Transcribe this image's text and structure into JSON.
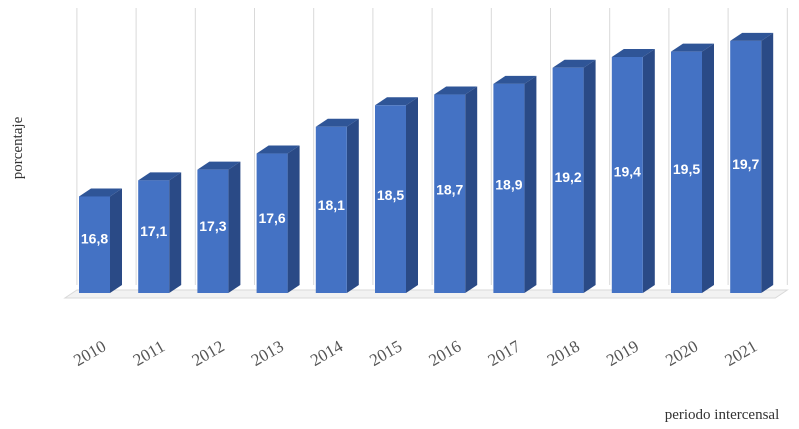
{
  "chart_data": {
    "type": "bar",
    "style": "3d-column",
    "categories": [
      "2010",
      "2011",
      "2012",
      "2013",
      "2014",
      "2015",
      "2016",
      "2017",
      "2018",
      "2019",
      "2020",
      "2021"
    ],
    "values": [
      16.8,
      17.1,
      17.3,
      17.6,
      18.1,
      18.5,
      18.7,
      18.9,
      19.2,
      19.4,
      19.5,
      19.7
    ],
    "data_labels": [
      "16,8",
      "17,1",
      "17,3",
      "17,6",
      "18,1",
      "18,5",
      "18,7",
      "18,9",
      "19,2",
      "19,4",
      "19,5",
      "19,7"
    ],
    "title": "",
    "xlabel": "periodo intercensal",
    "ylabel": "porcentaje",
    "ylim": [
      15,
      20
    ],
    "grid": "vertical",
    "legend": "none",
    "colors": {
      "front": "#4472c4",
      "side": "#2a4a86",
      "top": "#2f5597",
      "grid": "#d9d9d9"
    }
  }
}
